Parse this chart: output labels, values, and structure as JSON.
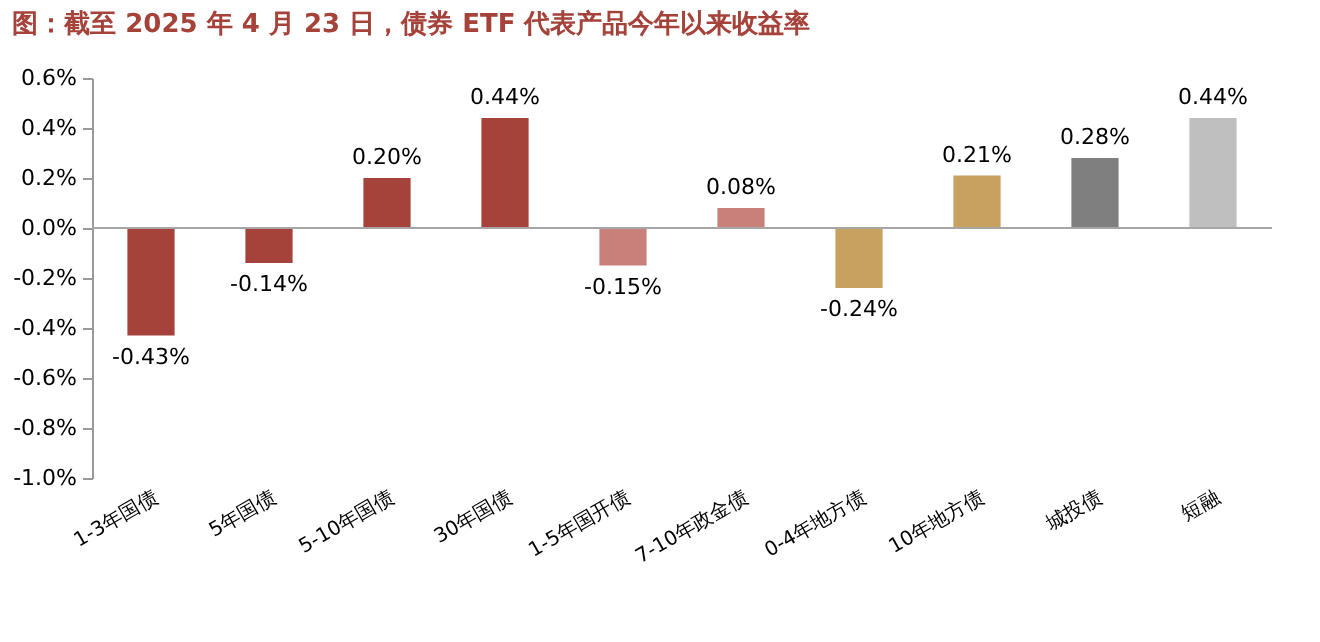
{
  "chart_data": {
    "type": "bar",
    "title": "图：截至 2025 年 4 月 23 日，债券 ETF 代表产品今年以来收益率",
    "categories": [
      "1-3年国债",
      "5年国债",
      "5-10年国债",
      "30年国债",
      "1-5年国开债",
      "7-10年政金债",
      "0-4年地方债",
      "10年地方债",
      "城投债",
      "短融"
    ],
    "values": [
      -0.43,
      -0.14,
      0.2,
      0.44,
      -0.15,
      0.08,
      -0.24,
      0.21,
      0.28,
      0.44
    ],
    "value_labels": [
      "-0.43%",
      "-0.14%",
      "0.20%",
      "0.44%",
      "-0.15%",
      "0.08%",
      "-0.24%",
      "0.21%",
      "0.28%",
      "0.44%"
    ],
    "colors": [
      "#a5423a",
      "#a5423a",
      "#a5423a",
      "#a5423a",
      "#c9807a",
      "#c9807a",
      "#c8a060",
      "#c8a060",
      "#7f7f7f",
      "#bfbfbf"
    ],
    "ylim": [
      -1.0,
      0.6
    ],
    "yticks": [
      {
        "value": -1.0,
        "label": "-1.0%"
      },
      {
        "value": -0.8,
        "label": "-0.8%"
      },
      {
        "value": -0.6,
        "label": "-0.6%"
      },
      {
        "value": -0.4,
        "label": "-0.4%"
      },
      {
        "value": -0.2,
        "label": "-0.2%"
      },
      {
        "value": 0,
        "label": "0.0%"
      },
      {
        "value": 0.2,
        "label": "0.2%"
      },
      {
        "value": 0.4,
        "label": "0.4%"
      },
      {
        "value": 0.6,
        "label": "0.6%"
      }
    ],
    "ref_lines": [
      {
        "axis": "y",
        "value": 0,
        "color": "#a6a6a6"
      }
    ],
    "grid": false
  }
}
